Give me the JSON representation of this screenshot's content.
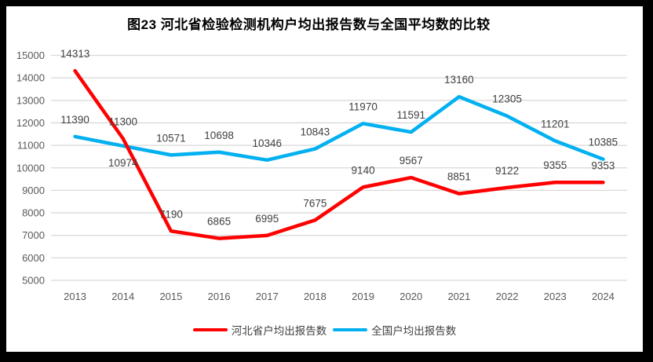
{
  "figure": {
    "frame_background": "#000000",
    "panel_background": "#ffffff"
  },
  "colors": {
    "grid": "#d9d9d9",
    "axis_tick_label": "#595959",
    "data_label": "#404040",
    "title": "#000000",
    "hebei_series": "#ff0000",
    "national_series": "#00b0f0"
  },
  "chart_data": {
    "type": "line",
    "title": "图23  河北省检验检测机构户均出报告数与全国平均数的比较",
    "xlabel": "",
    "ylabel": "",
    "categories": [
      "2013",
      "2014",
      "2015",
      "2016",
      "2017",
      "2018",
      "2019",
      "2020",
      "2021",
      "2022",
      "2023",
      "2024"
    ],
    "series": [
      {
        "name": "河北省户均出报告数",
        "color": "#ff0000",
        "values": [
          14313,
          11300,
          7190,
          6865,
          6995,
          7675,
          9140,
          9567,
          8851,
          9122,
          9355,
          9353
        ],
        "label_below_indices": []
      },
      {
        "name": "全国户均出报告数",
        "color": "#00b0f0",
        "values": [
          11390,
          10974,
          10571,
          10698,
          10346,
          10843,
          11970,
          11591,
          13160,
          12305,
          11201,
          10385
        ],
        "label_below_indices": [
          1
        ]
      }
    ],
    "ylim": [
      5000,
      15000
    ],
    "y_tick_step": 1000,
    "y_ticks": [
      15000,
      14000,
      13000,
      12000,
      11000,
      10000,
      9000,
      8000,
      7000,
      6000,
      5000
    ],
    "grid": true,
    "data_labels_shown": true,
    "legend_position": "bottom"
  }
}
